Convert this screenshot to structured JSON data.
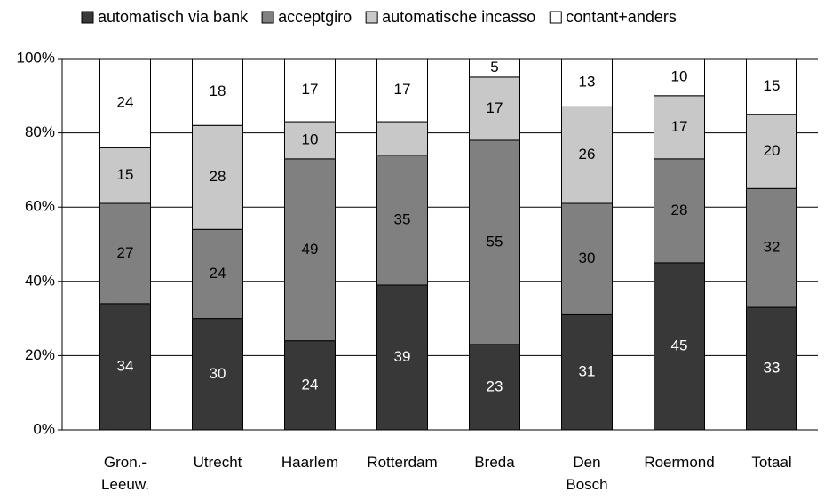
{
  "chart_data": {
    "type": "stacked_bar",
    "categories": [
      "Gron.-\nLeeuw.",
      "Utrecht",
      "Haarlem",
      "Rotterdam",
      "Breda",
      "Den\nBosch",
      "Roermond",
      "Totaal"
    ],
    "series": [
      {
        "name": "automatisch via bank",
        "color": "#383838",
        "label_color": "#ffffff",
        "values": [
          34,
          30,
          24,
          39,
          23,
          31,
          45,
          33
        ]
      },
      {
        "name": "acceptgiro",
        "color": "#808080",
        "label_color": "#000000",
        "values": [
          27,
          24,
          49,
          35,
          55,
          30,
          28,
          32
        ]
      },
      {
        "name": "automatische incasso",
        "color": "#c8c8c8",
        "label_color": "#000000",
        "values": [
          15,
          28,
          10,
          9,
          17,
          26,
          17,
          20
        ],
        "value_labels": [
          "15",
          "28",
          "10",
          null,
          "17",
          "26",
          "17",
          "20"
        ]
      },
      {
        "name": "contant+anders",
        "color": "#ffffff",
        "label_color": "#000000",
        "values": [
          24,
          18,
          17,
          17,
          5,
          13,
          10,
          15
        ]
      }
    ],
    "ylim": [
      0,
      100
    ],
    "yticks": [
      {
        "value": 0,
        "label": "0%"
      },
      {
        "value": 20,
        "label": "20%"
      },
      {
        "value": 40,
        "label": "40%"
      },
      {
        "value": 60,
        "label": "60%"
      },
      {
        "value": 80,
        "label": "80%"
      },
      {
        "value": 100,
        "label": "100%"
      }
    ],
    "grid": true,
    "legend": "top"
  }
}
